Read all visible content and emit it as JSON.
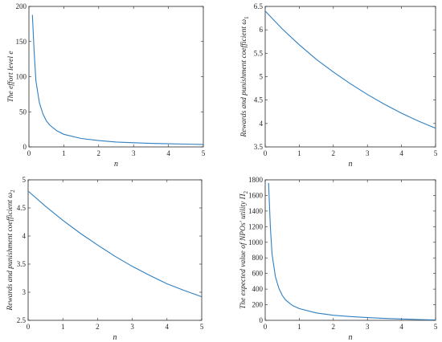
{
  "colors": {
    "series": "#2f7fc1",
    "axis": "#262626"
  },
  "chart_data": [
    {
      "type": "line",
      "xlabel": "n",
      "ylabel": "The effort level e",
      "xlim": [
        0,
        5
      ],
      "ylim": [
        0,
        200
      ],
      "xticks": [
        "0",
        "1",
        "2",
        "3",
        "4",
        "5"
      ],
      "yticks": [
        "0",
        "50",
        "100",
        "150",
        "200"
      ],
      "grid": false,
      "series": [
        {
          "x": [
            0.1,
            0.15,
            0.2,
            0.3,
            0.4,
            0.5,
            0.6,
            0.8,
            1.0,
            1.5,
            2.0,
            2.5,
            3.0,
            3.5,
            4.0,
            4.5,
            5.0
          ],
          "y": [
            188,
            135,
            94,
            63,
            47,
            37,
            31,
            23,
            18,
            12,
            9,
            7,
            6,
            5,
            4.5,
            4,
            3.5
          ]
        }
      ]
    },
    {
      "type": "line",
      "xlabel": "n",
      "ylabel": "Rewards and punishment coefficient ω1",
      "ylabel_main": "Rewards and punishment coefficient ω",
      "ylabel_sub": "1",
      "xlim": [
        0,
        5
      ],
      "ylim": [
        3.5,
        6.5
      ],
      "xticks": [
        "0",
        "1",
        "2",
        "3",
        "4",
        "5"
      ],
      "yticks": [
        "3.5",
        "4",
        "4.5",
        "5",
        "5.5",
        "6",
        "6.5"
      ],
      "grid": false,
      "series": [
        {
          "x": [
            0,
            0.5,
            1,
            1.5,
            2,
            2.5,
            3,
            3.5,
            4,
            4.5,
            5
          ],
          "y": [
            6.4,
            6.02,
            5.68,
            5.37,
            5.1,
            4.85,
            4.62,
            4.41,
            4.22,
            4.05,
            3.9
          ]
        }
      ]
    },
    {
      "type": "line",
      "xlabel": "n",
      "ylabel": "Rewards and punishment coefficient ω2",
      "ylabel_main": "Rewards and punishment coefficient ω",
      "ylabel_sub": "2",
      "xlim": [
        0,
        5
      ],
      "ylim": [
        2.5,
        5
      ],
      "xticks": [
        "0",
        "1",
        "2",
        "3",
        "4",
        "5"
      ],
      "yticks": [
        "2.5",
        "3",
        "3.5",
        "4",
        "4.5",
        "5"
      ],
      "grid": false,
      "series": [
        {
          "x": [
            0,
            0.5,
            1,
            1.5,
            2,
            2.5,
            3,
            3.5,
            4,
            4.5,
            5
          ],
          "y": [
            4.8,
            4.53,
            4.28,
            4.05,
            3.84,
            3.64,
            3.46,
            3.3,
            3.15,
            3.03,
            2.92
          ]
        }
      ]
    },
    {
      "type": "line",
      "xlabel": "n",
      "ylabel": "The expected value of NPOs' utility Π2",
      "ylabel_main": "The expected value of NPOs' utility Π",
      "ylabel_sub": "2",
      "xlim": [
        0,
        5
      ],
      "ylim": [
        0,
        1800
      ],
      "xticks": [
        "0",
        "1",
        "2",
        "3",
        "4",
        "5"
      ],
      "yticks": [
        "0",
        "200",
        "400",
        "600",
        "800",
        "1000",
        "1200",
        "1400",
        "1600",
        "1800"
      ],
      "grid": false,
      "series": [
        {
          "x": [
            0.1,
            0.15,
            0.2,
            0.3,
            0.4,
            0.5,
            0.6,
            0.8,
            1.0,
            1.5,
            2.0,
            2.5,
            3.0,
            3.5,
            4.0,
            4.5,
            5.0
          ],
          "y": [
            1760,
            1200,
            850,
            560,
            410,
            320,
            260,
            190,
            150,
            95,
            65,
            48,
            35,
            25,
            17,
            10,
            5
          ]
        }
      ]
    }
  ]
}
